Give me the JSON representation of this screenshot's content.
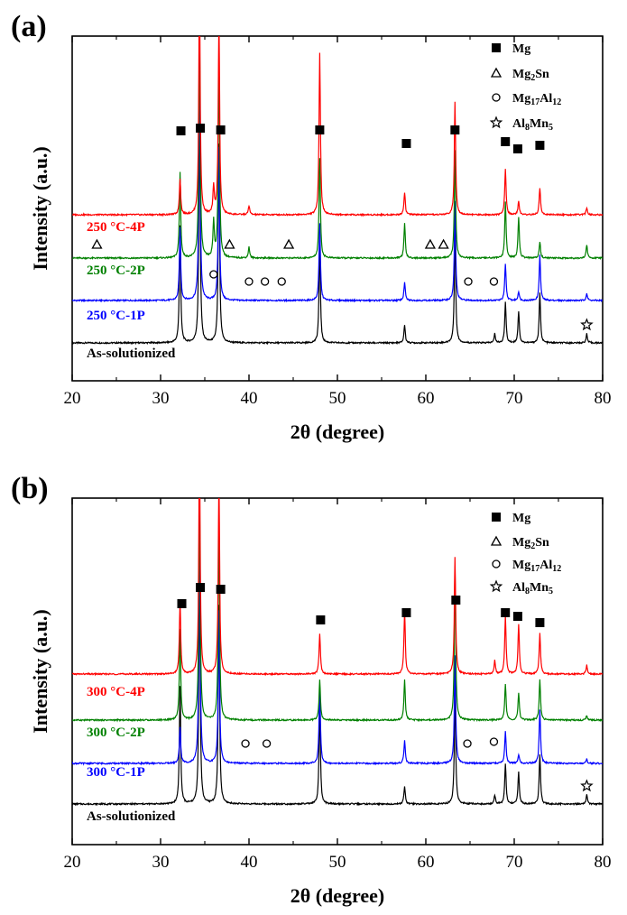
{
  "chart_data": [
    {
      "type": "line",
      "panel_label": "(a)",
      "xlabel": "2θ (degree)",
      "ylabel": "Intensity (a.u.)",
      "xlim": [
        20,
        80
      ],
      "xticks": [
        "20",
        "30",
        "40",
        "50",
        "60",
        "70",
        "80"
      ],
      "legend": [
        {
          "marker": "square",
          "label": "Mg",
          "main": "Mg",
          "sub": ""
        },
        {
          "marker": "triangle",
          "label": "Mg2Sn",
          "main": "Mg",
          "sub": "2",
          "tail": "Sn"
        },
        {
          "marker": "circle",
          "label": "Mg17Al12",
          "main": "Mg",
          "sub": "17",
          "main2": "Al",
          "sub2": "12"
        },
        {
          "marker": "star",
          "label": "Al8Mn5",
          "main": "Al",
          "sub": "8",
          "main2": "Mn",
          "sub2": "5"
        }
      ],
      "series": [
        {
          "name": "As-solutionized",
          "color": "#000000",
          "offset": 0,
          "peaks": [
            [
              32.2,
              130
            ],
            [
              34.4,
              260
            ],
            [
              36.6,
              220
            ],
            [
              48.0,
              110
            ],
            [
              57.6,
              20
            ],
            [
              63.3,
              130
            ],
            [
              67.8,
              10
            ],
            [
              69.0,
              45
            ],
            [
              70.5,
              35
            ],
            [
              72.9,
              55
            ],
            [
              78.2,
              10
            ]
          ]
        },
        {
          "name": "250 °C-1P",
          "color": "#0000ff",
          "offset": 1,
          "peaks": [
            [
              32.2,
              80
            ],
            [
              34.4,
              260
            ],
            [
              36.6,
              170
            ],
            [
              48.0,
              85
            ],
            [
              57.6,
              20
            ],
            [
              63.3,
              110
            ],
            [
              69.0,
              40
            ],
            [
              70.5,
              10
            ],
            [
              72.9,
              50
            ],
            [
              78.2,
              8
            ]
          ]
        },
        {
          "name": "250 °C-2P",
          "color": "#008000",
          "offset": 2,
          "peaks": [
            [
              32.2,
              95
            ],
            [
              34.4,
              260
            ],
            [
              36.0,
              40
            ],
            [
              36.6,
              220
            ],
            [
              40.0,
              12
            ],
            [
              48.0,
              110
            ],
            [
              57.6,
              38
            ],
            [
              63.3,
              120
            ],
            [
              69.0,
              62
            ],
            [
              70.5,
              45
            ],
            [
              72.9,
              18
            ],
            [
              78.2,
              15
            ]
          ]
        },
        {
          "name": "250 °C-4P",
          "color": "#ff0000",
          "offset": 3,
          "peaks": [
            [
              32.2,
              40
            ],
            [
              34.4,
              260
            ],
            [
              36.0,
              30
            ],
            [
              36.6,
              220
            ],
            [
              40.0,
              10
            ],
            [
              48.0,
              180
            ],
            [
              57.6,
              25
            ],
            [
              63.3,
              125
            ],
            [
              69.0,
              50
            ],
            [
              70.5,
              15
            ],
            [
              72.9,
              30
            ],
            [
              78.2,
              8
            ]
          ]
        }
      ],
      "phase_markers": [
        {
          "series": 3,
          "marker": "square",
          "x": [
            32.3,
            34.5,
            36.8,
            48.0,
            57.8,
            63.3,
            69.0,
            70.4,
            72.9
          ],
          "y": [
            93,
            96,
            94,
            94,
            79,
            94,
            81,
            73,
            77
          ]
        },
        {
          "series": 2,
          "marker": "triangle",
          "x": [
            22.8,
            37.8,
            44.5,
            60.5,
            62.0
          ],
          "y": [
            15,
            15,
            15,
            15,
            15
          ]
        },
        {
          "series": 1,
          "marker": "circle",
          "x": [
            36.0,
            40.0,
            41.8,
            43.7,
            64.8,
            67.7
          ],
          "y": [
            29,
            21,
            21,
            21,
            21,
            21
          ]
        },
        {
          "series": 0,
          "marker": "star",
          "x": [
            78.2
          ],
          "y": [
            20
          ]
        }
      ]
    },
    {
      "type": "line",
      "panel_label": "(b)",
      "xlabel": "2θ (degree)",
      "ylabel": "Intensity (a.u.)",
      "xlim": [
        20,
        80
      ],
      "xticks": [
        "20",
        "30",
        "40",
        "50",
        "60",
        "70",
        "80"
      ],
      "legend": [
        {
          "marker": "square",
          "label": "Mg",
          "main": "Mg",
          "sub": ""
        },
        {
          "marker": "triangle",
          "label": "Mg2Sn",
          "main": "Mg",
          "sub": "2",
          "tail": "Sn"
        },
        {
          "marker": "circle",
          "label": "Mg17Al12",
          "main": "Mg",
          "sub": "17",
          "main2": "Al",
          "sub2": "12"
        },
        {
          "marker": "star",
          "label": "Al8Mn5",
          "main": "Al",
          "sub": "8",
          "main2": "Mn",
          "sub2": "5"
        }
      ],
      "series": [
        {
          "name": "As-solutionized",
          "color": "#000000",
          "offset": 0,
          "peaks": [
            [
              32.2,
              130
            ],
            [
              34.4,
              260
            ],
            [
              36.6,
              220
            ],
            [
              48.0,
              110
            ],
            [
              57.6,
              20
            ],
            [
              63.3,
              130
            ],
            [
              67.8,
              10
            ],
            [
              69.0,
              45
            ],
            [
              70.5,
              35
            ],
            [
              72.9,
              55
            ],
            [
              78.2,
              10
            ]
          ]
        },
        {
          "name": "300 °C-1P",
          "color": "#0000ff",
          "offset": 1,
          "peaks": [
            [
              32.2,
              40
            ],
            [
              34.4,
              260
            ],
            [
              36.6,
              170
            ],
            [
              48.0,
              85
            ],
            [
              57.6,
              25
            ],
            [
              63.3,
              120
            ],
            [
              69.0,
              35
            ],
            [
              70.5,
              10
            ],
            [
              72.9,
              60
            ],
            [
              78.2,
              5
            ]
          ]
        },
        {
          "name": "300 °C-2P",
          "color": "#008000",
          "offset": 2,
          "peaks": [
            [
              32.2,
              100
            ],
            [
              34.4,
              260
            ],
            [
              36.6,
              220
            ],
            [
              48.0,
              45
            ],
            [
              57.6,
              45
            ],
            [
              63.3,
              170
            ],
            [
              69.0,
              40
            ],
            [
              70.5,
              30
            ],
            [
              72.9,
              45
            ],
            [
              78.2,
              5
            ]
          ]
        },
        {
          "name": "300 °C-4P",
          "color": "#ff0000",
          "offset": 3,
          "peaks": [
            [
              32.2,
              80
            ],
            [
              34.4,
              260
            ],
            [
              36.6,
              220
            ],
            [
              48.0,
              45
            ],
            [
              57.6,
              70
            ],
            [
              63.3,
              130
            ],
            [
              67.8,
              15
            ],
            [
              69.0,
              65
            ],
            [
              70.5,
              55
            ],
            [
              72.9,
              45
            ],
            [
              78.2,
              10
            ]
          ]
        }
      ],
      "phase_markers": [
        {
          "series": 3,
          "marker": "square",
          "x": [
            32.4,
            34.5,
            36.8,
            48.1,
            57.8,
            63.4,
            69.0,
            70.4,
            72.9
          ],
          "y": [
            78,
            96,
            94,
            60,
            68,
            82,
            68,
            64,
            57
          ]
        },
        {
          "series": 1,
          "marker": "circle",
          "x": [
            39.6,
            42.0,
            64.7,
            67.7
          ],
          "y": [
            22,
            22,
            22,
            24
          ]
        },
        {
          "series": 0,
          "marker": "star",
          "x": [
            78.2
          ],
          "y": [
            20
          ]
        }
      ]
    }
  ]
}
